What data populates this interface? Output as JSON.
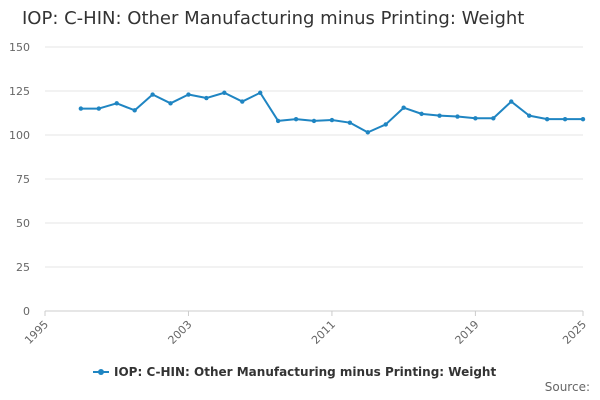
{
  "title": "IOP: C-HIN: Other Manufacturing minus Printing: Weight",
  "source_label": "Source:",
  "colors": {
    "series": "#1f85c2",
    "grid": "#e6e6e6",
    "axis": "#cccccc"
  },
  "chart_data": {
    "type": "line",
    "title": "IOP: C-HIN: Other Manufacturing minus Printing: Weight",
    "xlabel": "",
    "ylabel": "",
    "xlim": [
      1995,
      2025
    ],
    "ylim": [
      0,
      150
    ],
    "x_ticks": [
      "1995",
      "2003",
      "2011",
      "2019",
      "2025"
    ],
    "y_ticks": [
      "0",
      "25",
      "50",
      "75",
      "100",
      "125",
      "150"
    ],
    "grid": true,
    "legend_position": "bottom",
    "x": [
      1997,
      1998,
      1999,
      2000,
      2001,
      2002,
      2003,
      2004,
      2005,
      2006,
      2007,
      2008,
      2009,
      2010,
      2011,
      2012,
      2013,
      2014,
      2015,
      2016,
      2017,
      2018,
      2019,
      2020,
      2021,
      2022,
      2023,
      2024,
      2025
    ],
    "series": [
      {
        "name": "IOP: C-HIN: Other Manufacturing minus Printing: Weight",
        "values": [
          115,
          115,
          118,
          114,
          123,
          118,
          123,
          121,
          124,
          119,
          124,
          108,
          109,
          108,
          108.5,
          107,
          101.5,
          106,
          115.5,
          112,
          111,
          110.5,
          109.5,
          109.5,
          119,
          111,
          109,
          109,
          109
        ]
      }
    ]
  }
}
